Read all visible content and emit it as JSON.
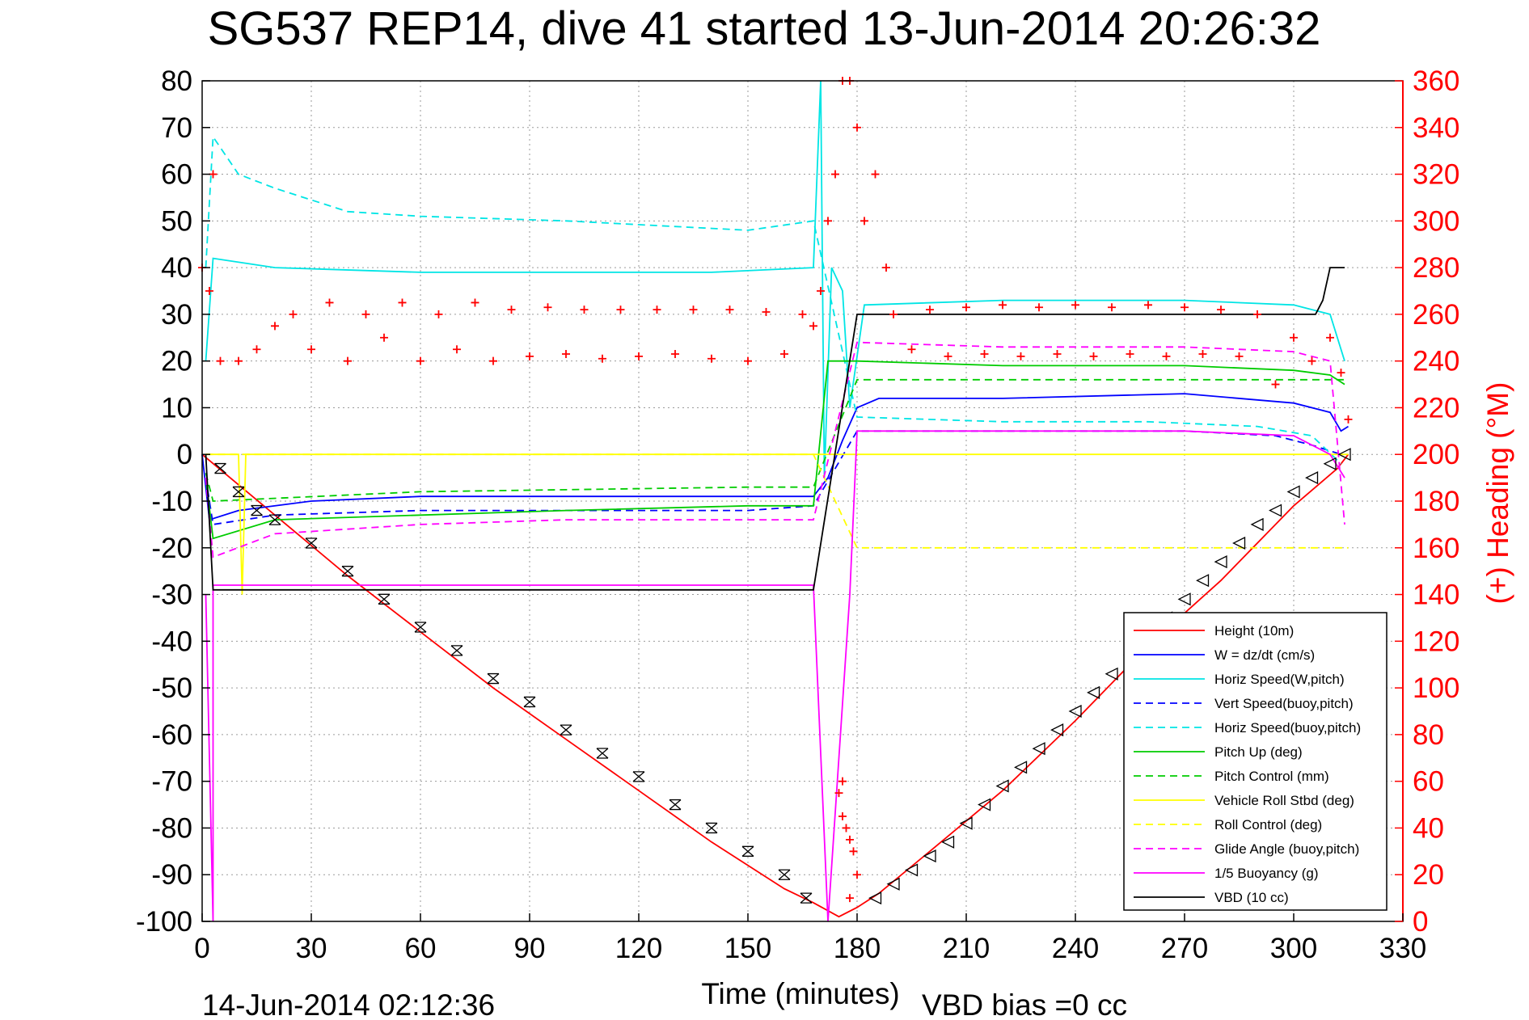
{
  "chart_data": {
    "type": "line",
    "title": "SG537 REP14, dive 41 started 13-Jun-2014 20:26:32",
    "xlabel": "Time (minutes)",
    "ylabel_right": "(+) Heading (°M)",
    "footer_left": "14-Jun-2014 02:12:36",
    "footer_right": "VBD bias =0 cc",
    "xlim": [
      0,
      330
    ],
    "ylim": [
      -100,
      80
    ],
    "ylim_right": [
      0,
      360
    ],
    "x_ticks": [
      "0",
      "30",
      "60",
      "90",
      "120",
      "150",
      "180",
      "210",
      "240",
      "270",
      "300",
      "330"
    ],
    "y_ticks": [
      "80",
      "70",
      "60",
      "50",
      "40",
      "30",
      "20",
      "10",
      "0",
      "-10",
      "-20",
      "-30",
      "-40",
      "-50",
      "-60",
      "-70",
      "-80",
      "-90",
      "-100"
    ],
    "y_right_ticks": [
      "360",
      "340",
      "320",
      "300",
      "280",
      "260",
      "240",
      "220",
      "200",
      "180",
      "160",
      "140",
      "120",
      "100",
      "80",
      "60",
      "40",
      "20",
      "0"
    ],
    "grid": true,
    "legend_position": "bottom-right",
    "series": [
      {
        "name": "Height (10m)",
        "color": "#ff0000",
        "style": "solid",
        "points": [
          [
            0,
            0
          ],
          [
            20,
            -13
          ],
          [
            40,
            -26
          ],
          [
            60,
            -38
          ],
          [
            80,
            -50
          ],
          [
            100,
            -61
          ],
          [
            120,
            -72
          ],
          [
            140,
            -83
          ],
          [
            160,
            -93
          ],
          [
            168,
            -96
          ],
          [
            175,
            -99
          ],
          [
            180,
            -97
          ],
          [
            186,
            -94
          ],
          [
            200,
            -85
          ],
          [
            220,
            -72
          ],
          [
            240,
            -57
          ],
          [
            260,
            -41
          ],
          [
            280,
            -27
          ],
          [
            300,
            -11
          ],
          [
            312,
            -3
          ],
          [
            315,
            0
          ]
        ]
      },
      {
        "name": "W = dz/dt (cm/s)",
        "color": "#0000ff",
        "style": "solid",
        "points": [
          [
            0,
            0
          ],
          [
            2,
            -14
          ],
          [
            10,
            -12
          ],
          [
            30,
            -10
          ],
          [
            60,
            -9
          ],
          [
            100,
            -9
          ],
          [
            150,
            -9
          ],
          [
            168,
            -9
          ],
          [
            172,
            -5
          ],
          [
            176,
            3
          ],
          [
            180,
            10
          ],
          [
            186,
            12
          ],
          [
            220,
            12
          ],
          [
            270,
            13
          ],
          [
            300,
            11
          ],
          [
            310,
            9
          ],
          [
            313,
            5
          ],
          [
            315,
            6
          ]
        ]
      },
      {
        "name": "Horiz Speed(W,pitch)",
        "color": "#00e5e5",
        "style": "solid",
        "points": [
          [
            1,
            20
          ],
          [
            3,
            42
          ],
          [
            20,
            40
          ],
          [
            60,
            39
          ],
          [
            100,
            39
          ],
          [
            140,
            39
          ],
          [
            168,
            40
          ],
          [
            170,
            80
          ],
          [
            171,
            -5
          ],
          [
            173,
            40
          ],
          [
            176,
            35
          ],
          [
            178,
            10
          ],
          [
            182,
            32
          ],
          [
            220,
            33
          ],
          [
            270,
            33
          ],
          [
            300,
            32
          ],
          [
            310,
            30
          ],
          [
            314,
            20
          ]
        ]
      },
      {
        "name": "Vert Speed(buoy,pitch)",
        "color": "#0000ff",
        "style": "dashed",
        "points": [
          [
            1,
            -5
          ],
          [
            3,
            -15
          ],
          [
            20,
            -13
          ],
          [
            60,
            -12
          ],
          [
            100,
            -12
          ],
          [
            150,
            -12
          ],
          [
            168,
            -11
          ],
          [
            180,
            5
          ],
          [
            220,
            5
          ],
          [
            270,
            5
          ],
          [
            295,
            4
          ],
          [
            305,
            2
          ],
          [
            313,
            0
          ]
        ]
      },
      {
        "name": "Horiz Speed(buoy,pitch)",
        "color": "#00e5e5",
        "style": "dashed",
        "points": [
          [
            1,
            40
          ],
          [
            3,
            68
          ],
          [
            10,
            60
          ],
          [
            20,
            57
          ],
          [
            40,
            52
          ],
          [
            60,
            51
          ],
          [
            100,
            50
          ],
          [
            150,
            48
          ],
          [
            168,
            50
          ],
          [
            180,
            8
          ],
          [
            220,
            7
          ],
          [
            260,
            7
          ],
          [
            290,
            6
          ],
          [
            305,
            4
          ],
          [
            313,
            -2
          ]
        ]
      },
      {
        "name": "Pitch Up (deg)",
        "color": "#00cc00",
        "style": "solid",
        "points": [
          [
            1,
            -5
          ],
          [
            3,
            -18
          ],
          [
            20,
            -14
          ],
          [
            60,
            -13
          ],
          [
            100,
            -12
          ],
          [
            150,
            -11
          ],
          [
            168,
            -11
          ],
          [
            172,
            20
          ],
          [
            180,
            20
          ],
          [
            220,
            19
          ],
          [
            270,
            19
          ],
          [
            300,
            18
          ],
          [
            310,
            17
          ],
          [
            314,
            15
          ]
        ]
      },
      {
        "name": "Pitch Control (mm)",
        "color": "#00cc00",
        "style": "dashed",
        "points": [
          [
            1,
            -4
          ],
          [
            3,
            -10
          ],
          [
            60,
            -8
          ],
          [
            150,
            -7
          ],
          [
            168,
            -7
          ],
          [
            180,
            16
          ],
          [
            300,
            16
          ],
          [
            314,
            16
          ]
        ]
      },
      {
        "name": "Vehicle Roll Stbd (deg)",
        "color": "#ffff00",
        "style": "solid",
        "points": [
          [
            1,
            0
          ],
          [
            10,
            0
          ],
          [
            11,
            -30
          ],
          [
            12,
            0
          ],
          [
            60,
            0
          ],
          [
            120,
            0
          ],
          [
            168,
            0
          ],
          [
            180,
            0
          ],
          [
            240,
            0
          ],
          [
            300,
            0
          ],
          [
            315,
            0
          ]
        ]
      },
      {
        "name": "Roll Control (deg)",
        "color": "#ffff00",
        "style": "dashed",
        "points": [
          [
            1,
            0
          ],
          [
            60,
            0
          ],
          [
            120,
            0
          ],
          [
            168,
            0
          ],
          [
            180,
            -20
          ],
          [
            240,
            -20
          ],
          [
            300,
            -20
          ],
          [
            315,
            -20
          ]
        ]
      },
      {
        "name": "Glide Angle (buoy,pitch)",
        "color": "#ff00ff",
        "style": "dashed",
        "points": [
          [
            1,
            -5
          ],
          [
            3,
            -22
          ],
          [
            20,
            -17
          ],
          [
            60,
            -15
          ],
          [
            100,
            -14
          ],
          [
            150,
            -14
          ],
          [
            168,
            -14
          ],
          [
            180,
            24
          ],
          [
            220,
            23
          ],
          [
            270,
            23
          ],
          [
            300,
            22
          ],
          [
            310,
            20
          ],
          [
            314,
            -15
          ]
        ]
      },
      {
        "name": "1/5 Buoyancy (g)",
        "color": "#ff00ff",
        "style": "solid",
        "points": [
          [
            1,
            -30
          ],
          [
            3,
            -100
          ],
          [
            3,
            -28
          ],
          [
            160,
            -28
          ],
          [
            168,
            -28
          ],
          [
            172,
            -100
          ],
          [
            178,
            -30
          ],
          [
            180,
            5
          ],
          [
            220,
            5
          ],
          [
            270,
            5
          ],
          [
            300,
            4
          ],
          [
            310,
            0
          ],
          [
            314,
            -5
          ]
        ]
      },
      {
        "name": "VBD (10 cc)",
        "color": "#000000",
        "style": "solid",
        "points": [
          [
            1,
            0
          ],
          [
            3,
            -29
          ],
          [
            60,
            -29
          ],
          [
            120,
            -29
          ],
          [
            168,
            -29
          ],
          [
            180,
            30
          ],
          [
            220,
            30
          ],
          [
            270,
            30
          ],
          [
            300,
            30
          ],
          [
            306,
            30
          ],
          [
            308,
            33
          ],
          [
            310,
            40
          ],
          [
            314,
            40
          ]
        ]
      }
    ],
    "heading": {
      "name": "(+) Heading (°M)",
      "color": "#ff0000",
      "marker": "+",
      "points": [
        [
          0,
          280
        ],
        [
          2,
          270
        ],
        [
          3,
          320
        ],
        [
          5,
          240
        ],
        [
          10,
          240
        ],
        [
          15,
          245
        ],
        [
          20,
          255
        ],
        [
          25,
          260
        ],
        [
          30,
          245
        ],
        [
          35,
          265
        ],
        [
          40,
          240
        ],
        [
          45,
          260
        ],
        [
          50,
          250
        ],
        [
          55,
          265
        ],
        [
          60,
          240
        ],
        [
          65,
          260
        ],
        [
          70,
          245
        ],
        [
          75,
          265
        ],
        [
          80,
          240
        ],
        [
          85,
          262
        ],
        [
          90,
          242
        ],
        [
          95,
          263
        ],
        [
          100,
          243
        ],
        [
          105,
          262
        ],
        [
          110,
          241
        ],
        [
          115,
          262
        ],
        [
          120,
          242
        ],
        [
          125,
          262
        ],
        [
          130,
          243
        ],
        [
          135,
          262
        ],
        [
          140,
          241
        ],
        [
          145,
          262
        ],
        [
          150,
          240
        ],
        [
          155,
          261
        ],
        [
          160,
          243
        ],
        [
          165,
          260
        ],
        [
          168,
          255
        ],
        [
          170,
          270
        ],
        [
          172,
          300
        ],
        [
          174,
          320
        ],
        [
          176,
          360
        ],
        [
          178,
          360
        ],
        [
          180,
          340
        ],
        [
          182,
          300
        ],
        [
          185,
          320
        ],
        [
          188,
          280
        ],
        [
          190,
          260
        ],
        [
          195,
          245
        ],
        [
          200,
          262
        ],
        [
          205,
          242
        ],
        [
          210,
          263
        ],
        [
          215,
          243
        ],
        [
          220,
          264
        ],
        [
          225,
          242
        ],
        [
          230,
          263
        ],
        [
          235,
          243
        ],
        [
          240,
          264
        ],
        [
          245,
          242
        ],
        [
          250,
          263
        ],
        [
          255,
          243
        ],
        [
          260,
          264
        ],
        [
          265,
          242
        ],
        [
          270,
          263
        ],
        [
          275,
          243
        ],
        [
          280,
          262
        ],
        [
          285,
          242
        ],
        [
          290,
          260
        ],
        [
          295,
          230
        ],
        [
          300,
          250
        ],
        [
          305,
          240
        ],
        [
          310,
          250
        ],
        [
          313,
          235
        ],
        [
          315,
          215
        ]
      ]
    },
    "heading_low_points": [
      [
        175,
        55
      ],
      [
        176,
        45
      ],
      [
        177,
        40
      ],
      [
        178,
        35
      ],
      [
        179,
        30
      ],
      [
        180,
        20
      ],
      [
        178,
        10
      ],
      [
        176,
        60
      ]
    ],
    "dive_markers": [
      [
        5,
        -3
      ],
      [
        10,
        -8
      ],
      [
        15,
        -12
      ],
      [
        20,
        -14
      ],
      [
        30,
        -19
      ],
      [
        40,
        -25
      ],
      [
        50,
        -31
      ],
      [
        60,
        -37
      ],
      [
        70,
        -42
      ],
      [
        80,
        -48
      ],
      [
        90,
        -53
      ],
      [
        100,
        -59
      ],
      [
        110,
        -64
      ],
      [
        120,
        -69
      ],
      [
        130,
        -75
      ],
      [
        140,
        -80
      ],
      [
        150,
        -85
      ],
      [
        160,
        -90
      ],
      [
        166,
        -95
      ]
    ],
    "climb_markers": [
      [
        185,
        -95
      ],
      [
        190,
        -92
      ],
      [
        195,
        -89
      ],
      [
        200,
        -86
      ],
      [
        205,
        -83
      ],
      [
        210,
        -79
      ],
      [
        215,
        -75
      ],
      [
        220,
        -71
      ],
      [
        225,
        -67
      ],
      [
        230,
        -63
      ],
      [
        235,
        -59
      ],
      [
        240,
        -55
      ],
      [
        245,
        -51
      ],
      [
        250,
        -47
      ],
      [
        255,
        -43
      ],
      [
        260,
        -39
      ],
      [
        265,
        -35
      ],
      [
        270,
        -31
      ],
      [
        275,
        -27
      ],
      [
        280,
        -23
      ],
      [
        285,
        -19
      ],
      [
        290,
        -15
      ],
      [
        295,
        -12
      ],
      [
        300,
        -8
      ],
      [
        305,
        -5
      ],
      [
        310,
        -2
      ],
      [
        314,
        0
      ]
    ]
  }
}
